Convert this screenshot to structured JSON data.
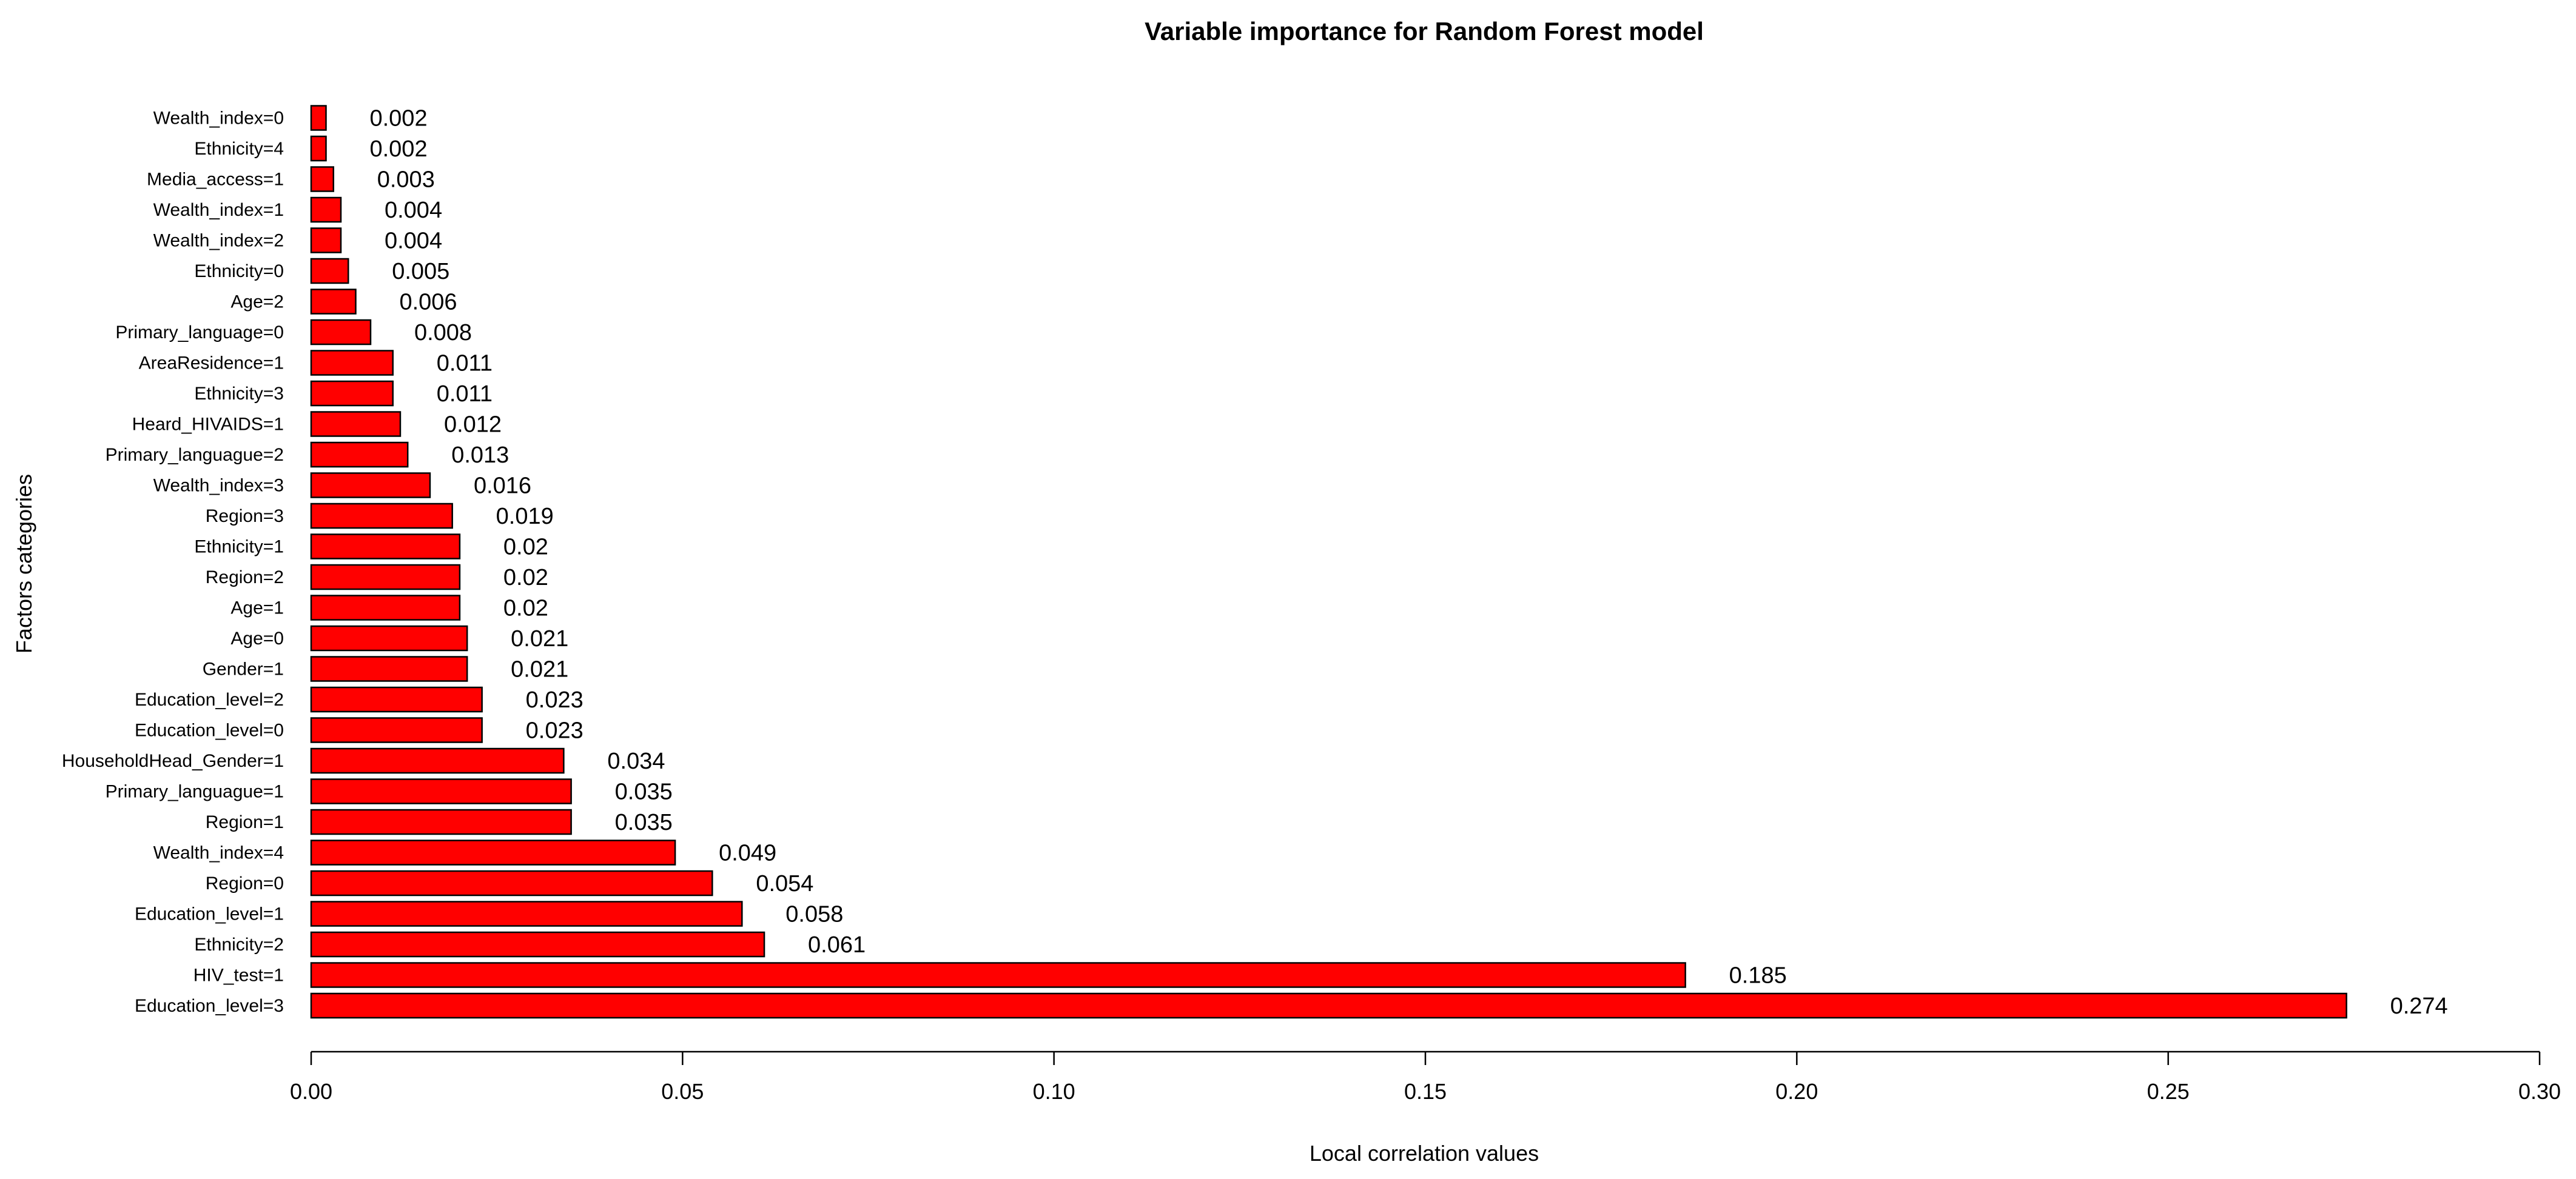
{
  "chart_data": {
    "type": "bar",
    "orientation": "horizontal",
    "title": "Variable importance for Random Forest model",
    "xlabel": "Local correlation values",
    "ylabel": "Factors categories",
    "xlim": [
      0,
      0.3
    ],
    "x_ticks": [
      "0.00",
      "0.05",
      "0.10",
      "0.15",
      "0.20",
      "0.25",
      "0.30"
    ],
    "x_tick_values": [
      0,
      0.05,
      0.1,
      0.15,
      0.2,
      0.25,
      0.3
    ],
    "bar_color": "#ff0000",
    "grid": false,
    "categories": [
      "Education_level=3",
      "HIV_test=1",
      "Ethnicity=2",
      "Education_level=1",
      "Region=0",
      "Wealth_index=4",
      "Region=1",
      "Primary_languague=1",
      "HouseholdHead_Gender=1",
      "Education_level=0",
      "Education_level=2",
      "Gender=1",
      "Age=0",
      "Age=1",
      "Region=2",
      "Ethnicity=1",
      "Region=3",
      "Wealth_index=3",
      "Primary_languague=2",
      "Heard_HIVAIDS=1",
      "Ethnicity=3",
      "AreaResidence=1",
      "Primary_language=0",
      "Age=2",
      "Ethnicity=0",
      "Wealth_index=2",
      "Wealth_index=1",
      "Media_access=1",
      "Ethnicity=4",
      "Wealth_index=0"
    ],
    "values": [
      0.274,
      0.185,
      0.061,
      0.058,
      0.054,
      0.049,
      0.035,
      0.035,
      0.034,
      0.023,
      0.023,
      0.021,
      0.021,
      0.02,
      0.02,
      0.02,
      0.019,
      0.016,
      0.013,
      0.012,
      0.011,
      0.011,
      0.008,
      0.006,
      0.005,
      0.004,
      0.004,
      0.003,
      0.002,
      0.002
    ],
    "value_labels": [
      "0.274",
      "0.185",
      "0.061",
      "0.058",
      "0.054",
      "0.049",
      "0.035",
      "0.035",
      "0.034",
      "0.023",
      "0.023",
      "0.021",
      "0.021",
      "0.02",
      "0.02",
      "0.02",
      "0.019",
      "0.016",
      "0.013",
      "0.012",
      "0.011",
      "0.011",
      "0.008",
      "0.006",
      "0.005",
      "0.004",
      "0.004",
      "0.003",
      "0.002",
      "0.002"
    ]
  }
}
